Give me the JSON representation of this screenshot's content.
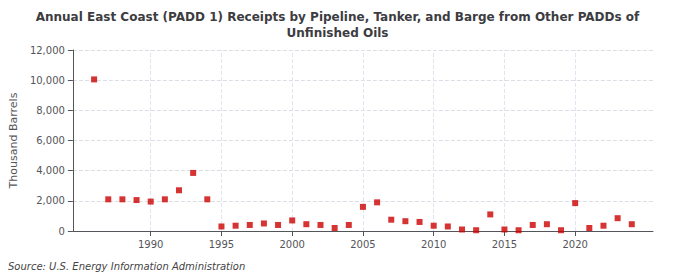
{
  "chart_data": {
    "type": "scatter",
    "title": "Annual East Coast (PADD 1) Receipts by Pipeline, Tanker, and Barge from Other PADDs of\nUnfinished Oils",
    "ylabel": "Thousand Barrels",
    "annotations": [
      "Source: U.S. Energy Information Administration"
    ],
    "x": [
      1986,
      1987,
      1988,
      1989,
      1990,
      1991,
      1992,
      1993,
      1994,
      1995,
      1996,
      1997,
      1998,
      1999,
      2000,
      2001,
      2002,
      2003,
      2004,
      2005,
      2006,
      2007,
      2008,
      2009,
      2010,
      2011,
      2012,
      2013,
      2014,
      2015,
      2016,
      2017,
      2018,
      2019,
      2020,
      2021,
      2022,
      2023,
      2024
    ],
    "values": [
      10050,
      2100,
      2100,
      2050,
      1950,
      2100,
      2700,
      3850,
      2100,
      300,
      350,
      400,
      500,
      400,
      700,
      450,
      400,
      200,
      400,
      1600,
      1900,
      750,
      650,
      600,
      350,
      300,
      100,
      50,
      1100,
      100,
      50,
      400,
      450,
      50,
      1850,
      200,
      350,
      850,
      450
    ],
    "color": "#cc0000",
    "marker": "square",
    "xlim": [
      1984.5,
      2025.5
    ],
    "xticks": [
      1990,
      1995,
      2000,
      2005,
      2010,
      2015,
      2020
    ],
    "ylim": [
      0,
      12000
    ],
    "yticks": [
      0,
      {
        "value": 2000,
        "label": "2,000"
      },
      {
        "value": 4000,
        "label": "4,000"
      },
      {
        "value": 6000,
        "label": "6,000"
      },
      {
        "value": 8000,
        "label": "8,000"
      },
      {
        "value": 10000,
        "label": "10,000"
      },
      {
        "value": 12000,
        "label": "12,000"
      }
    ],
    "grid": true
  }
}
